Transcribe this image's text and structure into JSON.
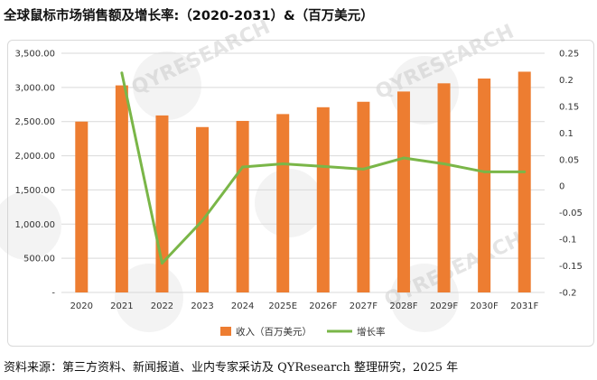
{
  "title": "全球鼠标市场销售额及增长率:（2020-2031）&（百万美元）",
  "source": "资料来源：第三方资料、新闻报道、业内专家采访及 QYResearch 整理研究，2025 年",
  "watermark": "QYRESEARCH",
  "colors": {
    "bar": "#ED7D31",
    "line": "#7AB648",
    "grid": "#d9d9d9"
  },
  "chart_data": {
    "type": "bar",
    "categories": [
      "2020",
      "2021",
      "2022",
      "2023",
      "2024",
      "2025E",
      "2026F",
      "2027F",
      "2028F",
      "2029F",
      "2030F",
      "2031F"
    ],
    "series": [
      {
        "name": "收入（百万美元）",
        "type": "bar",
        "axis": "left",
        "values": [
          2500,
          3030,
          2590,
          2420,
          2510,
          2610,
          2710,
          2790,
          2940,
          3060,
          3130,
          3230
        ]
      },
      {
        "name": "增长率",
        "type": "line",
        "axis": "right",
        "values": [
          null,
          0.213,
          -0.145,
          -0.065,
          0.036,
          0.042,
          0.037,
          0.032,
          0.053,
          0.042,
          0.027,
          0.027
        ]
      }
    ],
    "y_left": {
      "ylim": [
        0,
        3500
      ],
      "ticks": [
        0,
        500,
        1000,
        1500,
        2000,
        2500,
        3000,
        3500
      ],
      "tick_labels": [
        "-",
        "500.00",
        "1,000.00",
        "1,500.00",
        "2,000.00",
        "2,500.00",
        "3,000.00",
        "3,500.00"
      ]
    },
    "y_right": {
      "ylim": [
        -0.2,
        0.25
      ],
      "ticks": [
        -0.2,
        -0.15,
        -0.1,
        -0.05,
        0,
        0.05,
        0.1,
        0.15,
        0.2,
        0.25
      ],
      "tick_labels": [
        "-0.2",
        "-0.15",
        "-0.1",
        "-0.05",
        "0",
        "0.05",
        "0.1",
        "0.15",
        "0.2",
        "0.25"
      ]
    },
    "grid": true,
    "legend_position": "bottom-center"
  }
}
